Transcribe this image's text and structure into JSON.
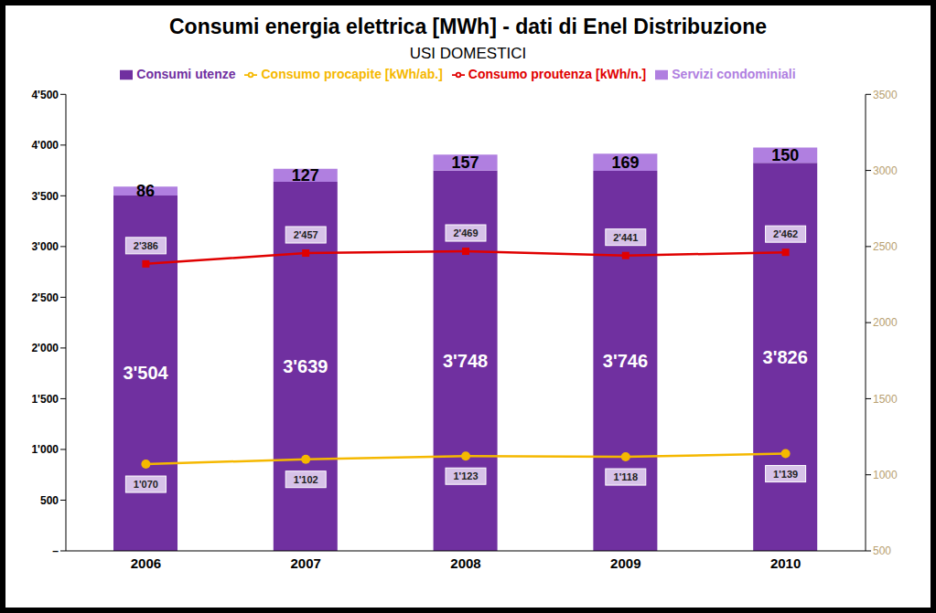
{
  "chart_data": {
    "type": "bar",
    "title": "Consumi energia elettrica [MWh] - dati di Enel Distribuzione",
    "subtitle": "USI DOMESTICI",
    "categories": [
      "2006",
      "2007",
      "2008",
      "2009",
      "2010"
    ],
    "stacked": true,
    "data_labels": true,
    "grid": false,
    "legend": "top",
    "ylim": [
      0,
      4500
    ],
    "yticks": [
      {
        "value": 0,
        "label": "–"
      },
      500,
      {
        "value": 1000,
        "label": "1'000"
      },
      {
        "value": 1500,
        "label": "1'500"
      },
      {
        "value": 2000,
        "label": "2'000"
      },
      {
        "value": 2500,
        "label": "2'500"
      },
      {
        "value": 3000,
        "label": "3'000"
      },
      {
        "value": 3500,
        "label": "3'500"
      },
      {
        "value": 4000,
        "label": "4'000"
      },
      {
        "value": 4500,
        "label": "4'500"
      }
    ],
    "y2lim": [
      500,
      3500
    ],
    "y2ticks": [
      500,
      1000,
      1500,
      2000,
      2500,
      3000,
      3500
    ],
    "series": [
      {
        "name": "Consumi utenze",
        "type": "bar",
        "color": "#7030a0",
        "values": [
          3504,
          3639,
          3748,
          3746,
          3826
        ],
        "value_labels": [
          "3'504",
          "3'639",
          "3'748",
          "3'746",
          "3'826"
        ]
      },
      {
        "name": "Servizi condominiali",
        "type": "bar",
        "color": "#b07fe0",
        "values": [
          86,
          127,
          157,
          169,
          150
        ]
      },
      {
        "name": "Consumo procapite [kWh/ab.]",
        "type": "line",
        "axis": "y2",
        "color": "#f5b800",
        "marker": "circle",
        "values": [
          1070,
          1102,
          1123,
          1118,
          1139
        ],
        "value_labels": [
          "1'070",
          "1'102",
          "1'123",
          "1'118",
          "1'139"
        ]
      },
      {
        "name": "Consumo proutenza [kWh/n.]",
        "type": "line",
        "axis": "y2",
        "color": "#e00000",
        "marker": "square",
        "values": [
          2386,
          2457,
          2469,
          2441,
          2462
        ],
        "value_labels": [
          "2'386",
          "2'457",
          "2'469",
          "2'441",
          "2'462"
        ]
      }
    ]
  }
}
